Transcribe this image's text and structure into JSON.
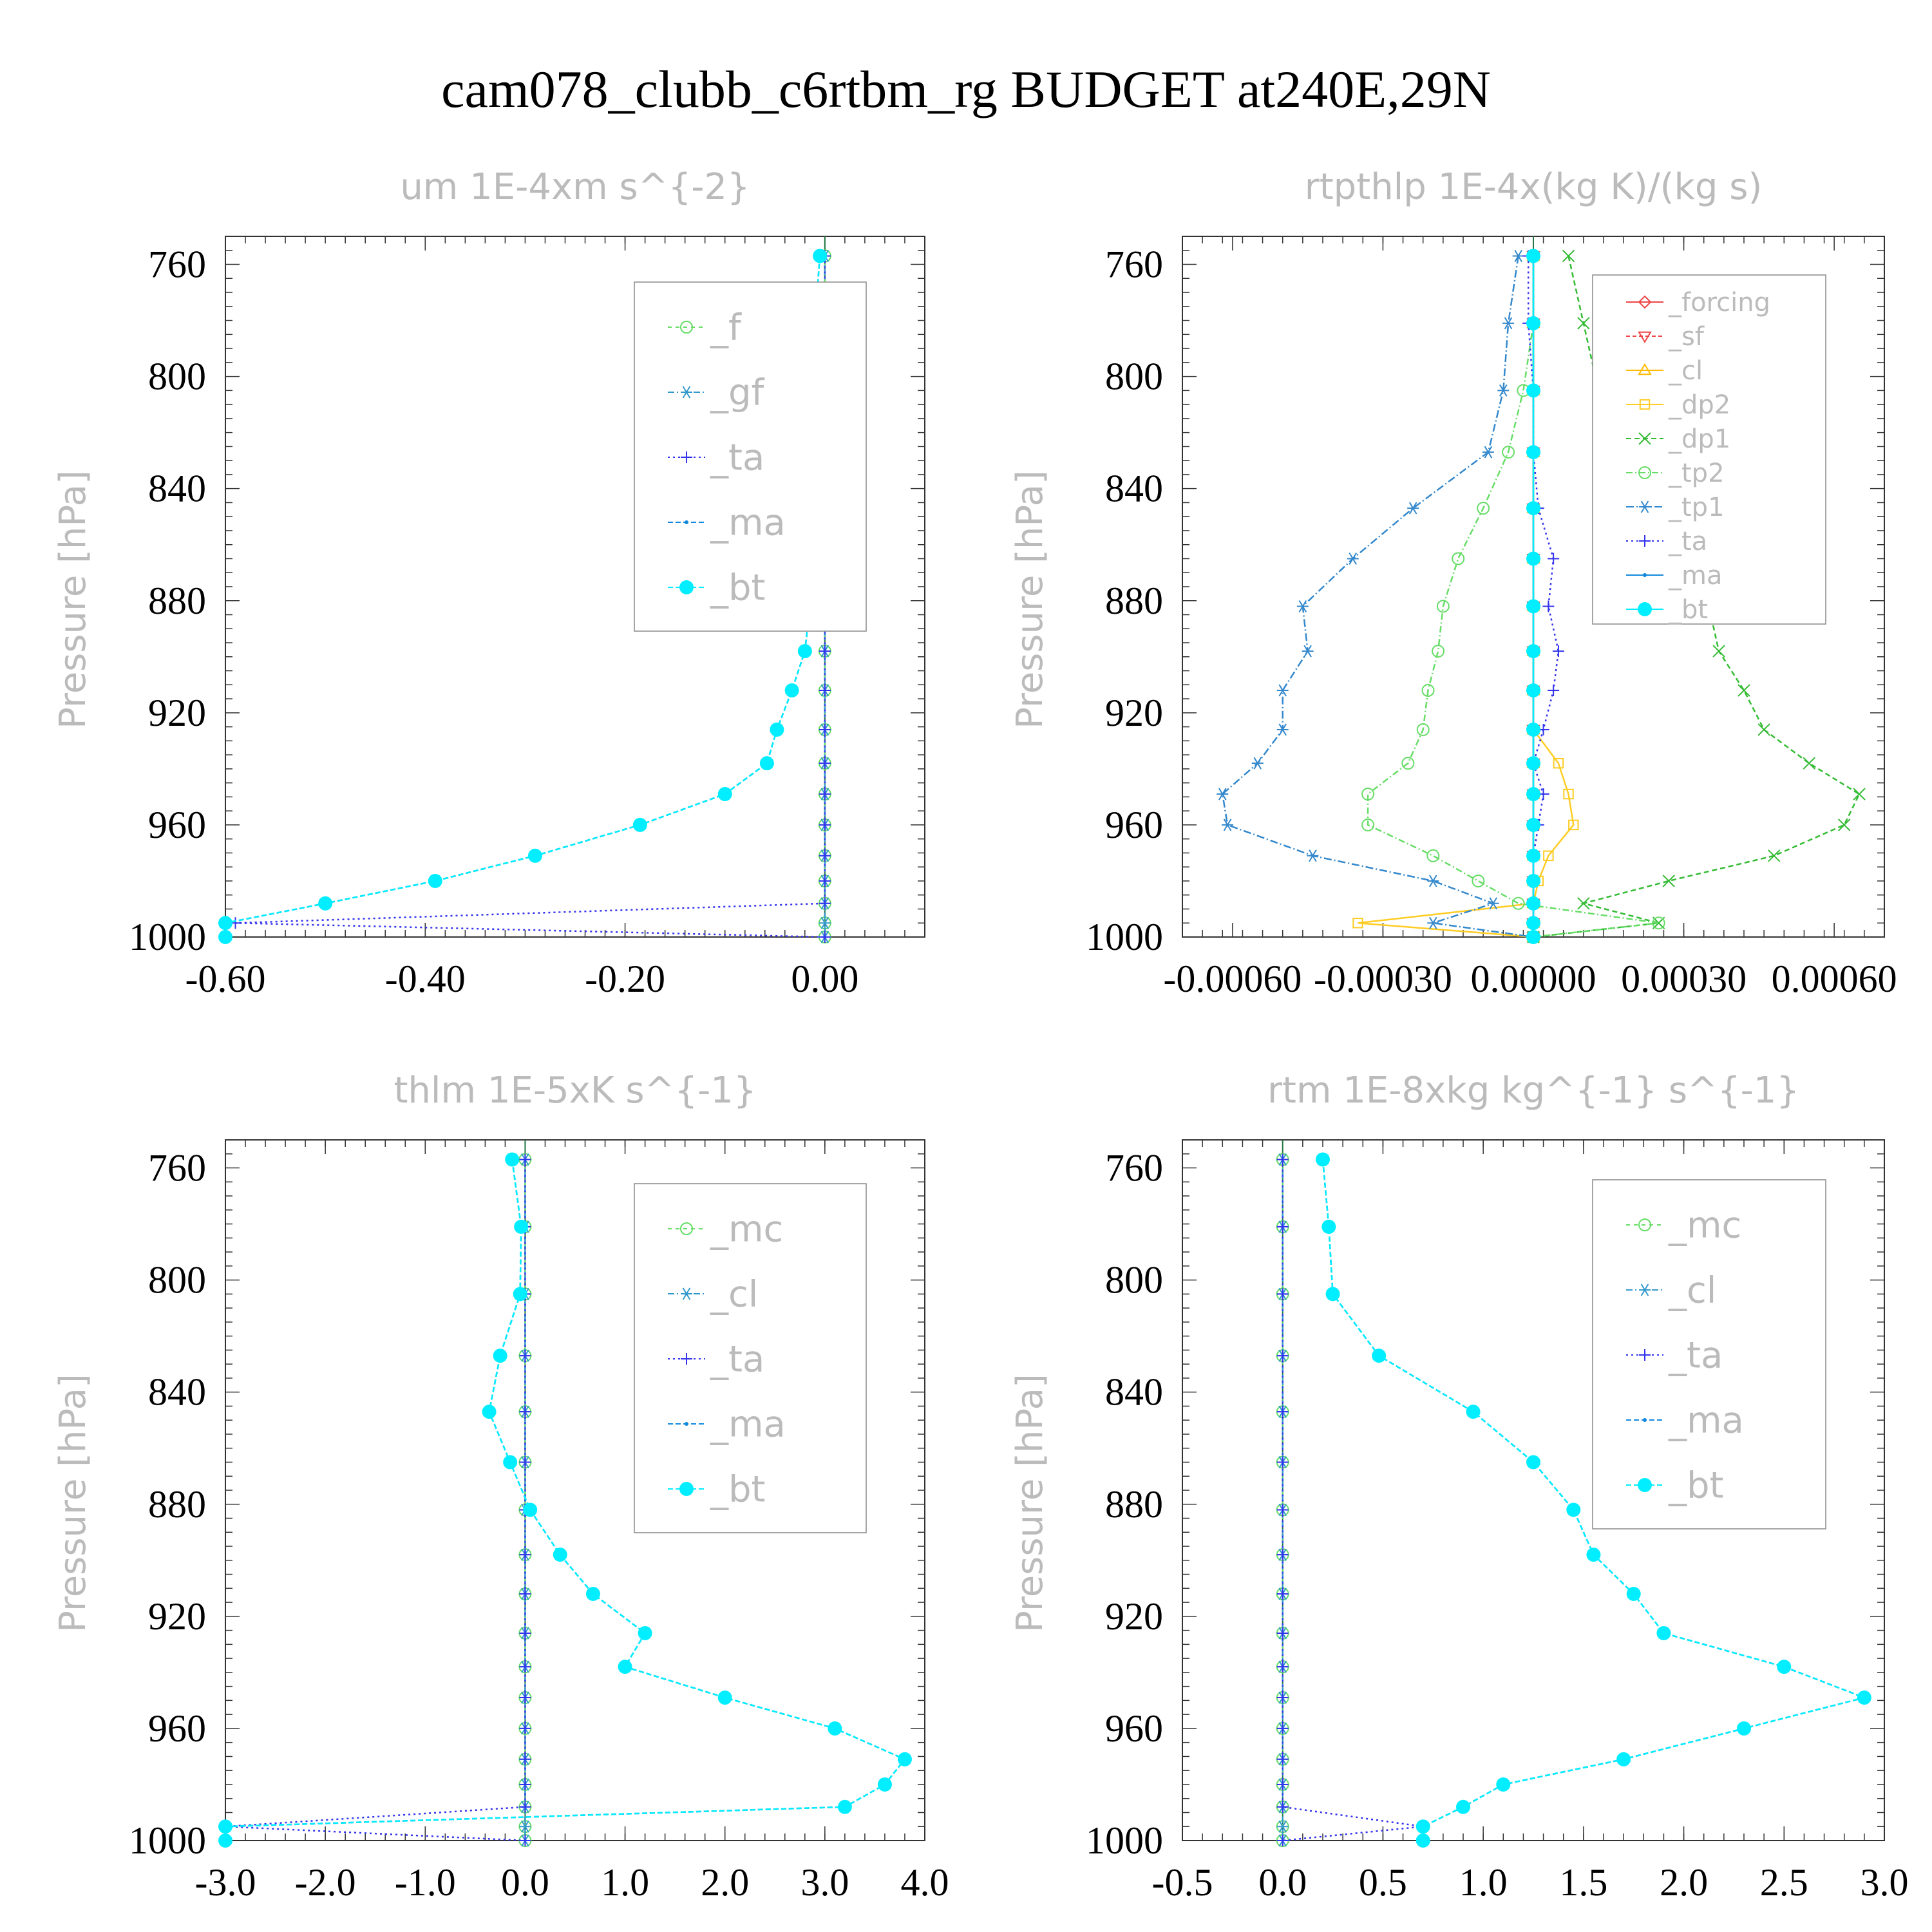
{
  "figure_title": "cam078_clubb_c6rtbm_rg  BUDGET at240E,29N",
  "colors": {
    "f": "#66dd66",
    "gf": "#3399cc",
    "ta": "#3333ee",
    "ma": "#1188dd",
    "bt": "#00eeff",
    "forcing": "#ee4444",
    "sf": "#ee4444",
    "cl_budget": "#ffbb00",
    "dp2": "#ffcc22",
    "dp1": "#33bb33",
    "tp2": "#66dd66",
    "tp1": "#3388cc",
    "mc": "#66dd66",
    "cl": "#3399cc",
    "axis": "#333333",
    "faded_text": "#bbbbbb"
  },
  "chart_data": [
    {
      "type": "line",
      "title": "um  1E-4xm s^{-2}",
      "ylabel": "Pressure [hPa]",
      "xlim": [
        -0.6,
        0.1
      ],
      "ylim": [
        1000,
        750
      ],
      "grid": false,
      "legend_position": "top-right",
      "xticks": [
        "-0.60",
        "-0.40",
        "-0.20",
        "0.00"
      ],
      "yticks": [
        "760",
        "800",
        "840",
        "880",
        "920",
        "960",
        "1000"
      ],
      "pressure": [
        757,
        781,
        805,
        827,
        847,
        865,
        882,
        898,
        912,
        926,
        938,
        949,
        960,
        971,
        980,
        988,
        995,
        1000
      ],
      "series": [
        {
          "name": "_f",
          "key": "f",
          "marker": "circle",
          "dash": "6,6",
          "values": [
            0,
            0,
            0,
            0,
            0,
            0,
            0,
            0,
            0,
            0,
            0,
            0,
            0,
            0,
            0,
            0,
            0,
            0
          ]
        },
        {
          "name": "_gf",
          "key": "gf",
          "marker": "star",
          "dash": "10,4,2,4",
          "values": [
            0,
            0,
            0,
            0,
            0,
            0,
            0,
            0,
            0,
            0,
            0,
            0,
            0,
            0,
            0,
            0,
            0,
            0
          ]
        },
        {
          "name": "_ta",
          "key": "ta",
          "marker": "plus",
          "dash": "3,5",
          "values": [
            0,
            0,
            0,
            0,
            0,
            0,
            0,
            0,
            0,
            0,
            0,
            0,
            0,
            0,
            0,
            0,
            -0.59,
            0
          ]
        },
        {
          "name": "_ma",
          "key": "ma",
          "marker": "dot",
          "dash": "8,4",
          "values": [
            -0.005,
            -0.01,
            -0.018,
            -0.025,
            -0.03,
            -0.025,
            -0.015,
            -0.02,
            -0.033,
            -0.048,
            -0.058,
            -0.1,
            -0.185,
            -0.29,
            -0.39,
            -0.5,
            -0.6,
            -0.6
          ]
        },
        {
          "name": "_bt",
          "key": "bt",
          "marker": "filled",
          "dash": "8,4",
          "values": [
            -0.005,
            -0.01,
            -0.018,
            -0.025,
            -0.03,
            -0.025,
            -0.015,
            -0.02,
            -0.033,
            -0.048,
            -0.058,
            -0.1,
            -0.185,
            -0.29,
            -0.39,
            -0.5,
            -0.6,
            -0.6
          ]
        }
      ]
    },
    {
      "type": "line",
      "title": "rtpthlp   1E-4x(kg K)/(kg s)",
      "ylabel": "Pressure [hPa]",
      "xlim": [
        -0.0007,
        0.0007
      ],
      "ylim": [
        1000,
        750
      ],
      "grid": false,
      "legend_position": "top-right",
      "xticks": [
        "-0.00060",
        "-0.00030",
        "0.00000",
        "0.00030",
        "0.00060"
      ],
      "yticks": [
        "760",
        "800",
        "840",
        "880",
        "920",
        "960",
        "1000"
      ],
      "pressure": [
        757,
        781,
        805,
        827,
        847,
        865,
        882,
        898,
        912,
        926,
        938,
        949,
        960,
        971,
        980,
        988,
        995,
        1000
      ],
      "series": [
        {
          "name": "_forcing",
          "key": "forcing",
          "marker": "diamond",
          "dash": "",
          "values": [
            0,
            0,
            0,
            0,
            0,
            0,
            0,
            0,
            0,
            0,
            0,
            0,
            0,
            0,
            0,
            0,
            0,
            0
          ]
        },
        {
          "name": "_sf",
          "key": "sf",
          "marker": "tri-down",
          "dash": "6,4",
          "values": [
            0,
            0,
            0,
            0,
            0,
            0,
            0,
            0,
            0,
            0,
            0,
            0,
            0,
            0,
            0,
            0,
            0,
            0
          ]
        },
        {
          "name": "_cl",
          "key": "cl_budget",
          "marker": "tri-up",
          "dash": "",
          "values": [
            0,
            0,
            0,
            0,
            0,
            0,
            0,
            0,
            0,
            0,
            0,
            0,
            0,
            0,
            0,
            0,
            0,
            0
          ]
        },
        {
          "name": "_dp2",
          "key": "dp2",
          "marker": "square",
          "dash": "",
          "values": [
            0,
            0,
            0,
            0,
            0,
            0,
            0,
            0,
            0,
            0,
            5e-05,
            7e-05,
            8e-05,
            3e-05,
            1e-05,
            0,
            -0.00035,
            0
          ]
        },
        {
          "name": "_dp1",
          "key": "dp1",
          "marker": "x",
          "dash": "8,5",
          "values": [
            7e-05,
            0.0001,
            0.00013,
            0.0002,
            0.00027,
            0.00033,
            0.00035,
            0.00037,
            0.00042,
            0.00046,
            0.00055,
            0.00065,
            0.00062,
            0.00048,
            0.00027,
            0.0001,
            0.00025,
            0
          ]
        },
        {
          "name": "_tp2",
          "key": "tp2",
          "marker": "circle",
          "dash": "10,4,2,4",
          "values": [
            0,
            0,
            -2e-05,
            -5e-05,
            -0.0001,
            -0.00015,
            -0.00018,
            -0.00019,
            -0.00021,
            -0.00022,
            -0.00025,
            -0.00033,
            -0.00033,
            -0.0002,
            -0.00011,
            -3e-05,
            0.00025,
            0
          ]
        },
        {
          "name": "_tp1",
          "key": "tp1",
          "marker": "star",
          "dash": "12,4,2,4",
          "values": [
            -3e-05,
            -5e-05,
            -6e-05,
            -9e-05,
            -0.00024,
            -0.00036,
            -0.00046,
            -0.00045,
            -0.0005,
            -0.0005,
            -0.00055,
            -0.00062,
            -0.00061,
            -0.00044,
            -0.0002,
            -8e-05,
            -0.0002,
            0
          ]
        },
        {
          "name": "_ta",
          "key": "ta",
          "marker": "plus",
          "dash": "3,5",
          "values": [
            -1e-05,
            -1e-05,
            0,
            0,
            1e-05,
            4e-05,
            3e-05,
            5e-05,
            4e-05,
            2e-05,
            0,
            2e-05,
            1e-05,
            0,
            0,
            0,
            0,
            0
          ]
        },
        {
          "name": "_ma",
          "key": "ma",
          "marker": "dot",
          "dash": "",
          "values": [
            0,
            0,
            0,
            0,
            0,
            0,
            0,
            0,
            0,
            0,
            0,
            0,
            0,
            0,
            0,
            0,
            0,
            0
          ]
        },
        {
          "name": "_bt",
          "key": "bt",
          "marker": "filled",
          "dash": "",
          "values": [
            0,
            0,
            0,
            0,
            0,
            0,
            0,
            0,
            0,
            0,
            0,
            0,
            0,
            0,
            0,
            0,
            0,
            0
          ]
        }
      ]
    },
    {
      "type": "line",
      "title": "thlm   1E-5xK s^{-1}",
      "ylabel": "Pressure [hPa]",
      "xlim": [
        -3.0,
        4.0
      ],
      "ylim": [
        1000,
        750
      ],
      "grid": false,
      "legend_position": "top-right",
      "xticks": [
        "-3.0",
        "-2.0",
        "-1.0",
        "0.0",
        "1.0",
        "2.0",
        "3.0",
        "4.0"
      ],
      "yticks": [
        "760",
        "800",
        "840",
        "880",
        "920",
        "960",
        "1000"
      ],
      "pressure": [
        757,
        781,
        805,
        827,
        847,
        865,
        882,
        898,
        912,
        926,
        938,
        949,
        960,
        971,
        980,
        988,
        995,
        1000
      ],
      "series": [
        {
          "name": "_mc",
          "key": "mc",
          "marker": "circle",
          "dash": "6,6",
          "values": [
            0,
            0,
            0,
            0,
            0,
            0,
            0,
            0,
            0,
            0,
            0,
            0,
            0,
            0,
            0,
            0,
            0,
            0
          ]
        },
        {
          "name": "_cl",
          "key": "cl",
          "marker": "star",
          "dash": "10,4,2,4",
          "values": [
            0,
            0,
            0,
            0,
            0,
            0,
            0,
            0,
            0,
            0,
            0,
            0,
            0,
            0,
            0,
            0,
            0,
            0
          ]
        },
        {
          "name": "_ta",
          "key": "ta",
          "marker": "plus",
          "dash": "3,5",
          "values": [
            0,
            0,
            0,
            0,
            0,
            0,
            0,
            0,
            0,
            0,
            0,
            0,
            0,
            0,
            0,
            0,
            -3.0,
            0
          ]
        },
        {
          "name": "_ma",
          "key": "ma",
          "marker": "dot",
          "dash": "8,4",
          "values": [
            -0.13,
            -0.04,
            -0.05,
            -0.25,
            -0.36,
            -0.15,
            0.05,
            0.35,
            0.68,
            1.2,
            1.0,
            2.0,
            3.1,
            3.8,
            3.6,
            3.2,
            -3.0,
            -3.0
          ]
        },
        {
          "name": "_bt",
          "key": "bt",
          "marker": "filled",
          "dash": "8,4",
          "values": [
            -0.13,
            -0.04,
            -0.05,
            -0.25,
            -0.36,
            -0.15,
            0.05,
            0.35,
            0.68,
            1.2,
            1.0,
            2.0,
            3.1,
            3.8,
            3.6,
            3.2,
            -3.0,
            -3.0
          ]
        }
      ]
    },
    {
      "type": "line",
      "title": "rtm   1E-8xkg kg^{-1} s^{-1}",
      "ylabel": "Pressure [hPa]",
      "xlim": [
        -0.5,
        3.0
      ],
      "ylim": [
        1000,
        750
      ],
      "grid": false,
      "legend_position": "top-right",
      "xticks": [
        "-0.5",
        "0.0",
        "0.5",
        "1.0",
        "1.5",
        "2.0",
        "2.5",
        "3.0"
      ],
      "yticks": [
        "760",
        "800",
        "840",
        "880",
        "920",
        "960",
        "1000"
      ],
      "pressure": [
        757,
        781,
        805,
        827,
        847,
        865,
        882,
        898,
        912,
        926,
        938,
        949,
        960,
        971,
        980,
        988,
        995,
        1000
      ],
      "series": [
        {
          "name": "_mc",
          "key": "mc",
          "marker": "circle",
          "dash": "6,6",
          "values": [
            0,
            0,
            0,
            0,
            0,
            0,
            0,
            0,
            0,
            0,
            0,
            0,
            0,
            0,
            0,
            0,
            0,
            0
          ]
        },
        {
          "name": "_cl",
          "key": "cl",
          "marker": "star",
          "dash": "10,4,2,4",
          "values": [
            0,
            0,
            0,
            0,
            0,
            0,
            0,
            0,
            0,
            0,
            0,
            0,
            0,
            0,
            0,
            0,
            0,
            0
          ]
        },
        {
          "name": "_ta",
          "key": "ta",
          "marker": "plus",
          "dash": "3,5",
          "values": [
            0,
            0,
            0,
            0,
            0,
            0,
            0,
            0,
            0,
            0,
            0,
            0,
            0,
            0,
            0,
            0,
            0.7,
            0
          ]
        },
        {
          "name": "_ma",
          "key": "ma",
          "marker": "dot",
          "dash": "8,4",
          "values": [
            0.2,
            0.23,
            0.25,
            0.48,
            0.95,
            1.25,
            1.45,
            1.55,
            1.75,
            1.9,
            2.5,
            2.9,
            2.3,
            1.7,
            1.1,
            0.9,
            0.7,
            0.7
          ]
        },
        {
          "name": "_bt",
          "key": "bt",
          "marker": "filled",
          "dash": "8,4",
          "values": [
            0.2,
            0.23,
            0.25,
            0.48,
            0.95,
            1.25,
            1.45,
            1.55,
            1.75,
            1.9,
            2.5,
            2.9,
            2.3,
            1.7,
            1.1,
            0.9,
            0.7,
            0.7
          ]
        }
      ]
    }
  ]
}
